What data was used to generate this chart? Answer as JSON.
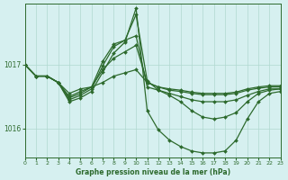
{
  "background_color": "#d6f0f0",
  "line_color": "#2d6a2d",
  "grid_color": "#b0d8d0",
  "xlabel": "Graphe pression niveau de la mer (hPa)",
  "xlim": [
    0,
    23
  ],
  "ylim": [
    1015.55,
    1017.95
  ],
  "yticks": [
    1016.0,
    1017.0
  ],
  "xticks": [
    0,
    1,
    2,
    3,
    4,
    5,
    6,
    7,
    8,
    9,
    10,
    11,
    12,
    13,
    14,
    15,
    16,
    17,
    18,
    19,
    20,
    21,
    22,
    23
  ],
  "series": [
    {
      "x": [
        0,
        1,
        2,
        3,
        4,
        5,
        6,
        7,
        8,
        9,
        10,
        11,
        12,
        13,
        14,
        15,
        16,
        17,
        18,
        19,
        20,
        21,
        22,
        23
      ],
      "y": [
        1017.0,
        1016.82,
        1016.82,
        1016.72,
        1016.55,
        1016.62,
        1016.65,
        1016.72,
        1016.82,
        1016.87,
        1016.92,
        1016.72,
        1016.65,
        1016.62,
        1016.6,
        1016.57,
        1016.55,
        1016.55,
        1016.55,
        1016.57,
        1016.62,
        1016.65,
        1016.67,
        1016.67
      ]
    },
    {
      "x": [
        0,
        1,
        2,
        3,
        4,
        5,
        6,
        7,
        8,
        9,
        10,
        11,
        12,
        13,
        14,
        15,
        16,
        17,
        18,
        19,
        20,
        21,
        22,
        23
      ],
      "y": [
        1017.0,
        1016.82,
        1016.82,
        1016.72,
        1016.5,
        1016.58,
        1016.65,
        1016.92,
        1017.1,
        1017.2,
        1017.3,
        1016.72,
        1016.65,
        1016.6,
        1016.58,
        1016.55,
        1016.53,
        1016.53,
        1016.53,
        1016.55,
        1016.6,
        1016.63,
        1016.65,
        1016.65
      ]
    },
    {
      "x": [
        0,
        1,
        2,
        3,
        4,
        5,
        6,
        7,
        8,
        9,
        10,
        11,
        12,
        13,
        14,
        15,
        16,
        17,
        18,
        19,
        20,
        21,
        22,
        23
      ],
      "y": [
        1017.0,
        1016.82,
        1016.82,
        1016.72,
        1016.48,
        1016.55,
        1016.65,
        1017.05,
        1017.32,
        1017.38,
        1017.45,
        1016.65,
        1016.6,
        1016.55,
        1016.5,
        1016.45,
        1016.42,
        1016.42,
        1016.42,
        1016.45,
        1016.52,
        1016.58,
        1016.62,
        1016.62
      ]
    },
    {
      "x": [
        0,
        1,
        2,
        3,
        4,
        5,
        6,
        7,
        8,
        9,
        10,
        11,
        12,
        13,
        14,
        15,
        16,
        17,
        18,
        19,
        20,
        21,
        22,
        23
      ],
      "y": [
        1017.0,
        1016.82,
        1016.82,
        1016.72,
        1016.45,
        1016.52,
        1016.62,
        1016.98,
        1017.28,
        1017.38,
        1017.78,
        1016.75,
        1016.6,
        1016.52,
        1016.42,
        1016.28,
        1016.18,
        1016.15,
        1016.18,
        1016.25,
        1016.42,
        1016.55,
        1016.6,
        1016.62
      ]
    },
    {
      "x": [
        0,
        1,
        2,
        3,
        4,
        5,
        6,
        7,
        8,
        9,
        10,
        11,
        12,
        13,
        14,
        15,
        16,
        17,
        18,
        19,
        20,
        21,
        22,
        23
      ],
      "y": [
        1017.0,
        1016.82,
        1016.82,
        1016.72,
        1016.42,
        1016.48,
        1016.58,
        1016.88,
        1017.18,
        1017.35,
        1017.88,
        1016.28,
        1015.98,
        1015.82,
        1015.72,
        1015.65,
        1015.62,
        1015.62,
        1015.65,
        1015.82,
        1016.15,
        1016.42,
        1016.55,
        1016.58
      ]
    }
  ]
}
